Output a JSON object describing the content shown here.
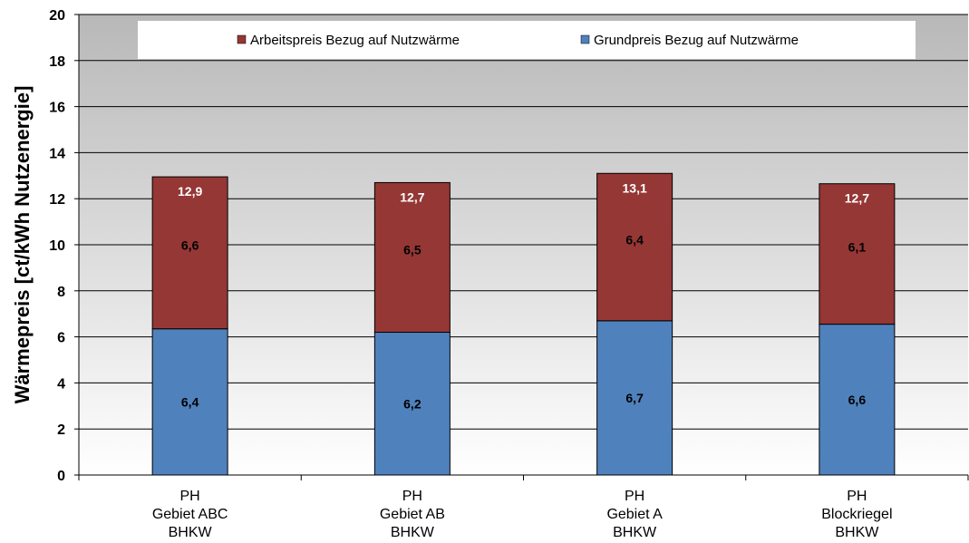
{
  "chart_data": {
    "type": "bar",
    "stacked": true,
    "ylabel": "Wärmepreis  [ct/kWh Nutzenergie]",
    "xlabel": "",
    "ylim": [
      0,
      20
    ],
    "yticks": [
      "0",
      "2",
      "4",
      "6",
      "8",
      "10",
      "12",
      "14",
      "16",
      "18",
      "20"
    ],
    "grid": true,
    "legend_position": "top",
    "categories": [
      [
        "PH",
        "Gebiet ABC",
        "BHKW"
      ],
      [
        "PH",
        "Gebiet AB",
        "BHKW"
      ],
      [
        "PH",
        "Gebiet A",
        "BHKW"
      ],
      [
        "PH",
        "Blockriegel",
        "BHKW"
      ]
    ],
    "series": [
      {
        "name": "Grundpreis Bezug auf Nutzwärme",
        "color": "#4f81bd",
        "values": [
          6.35,
          6.2,
          6.7,
          6.55
        ],
        "labels": [
          "6,4",
          "6,2",
          "6,7",
          "6,6"
        ]
      },
      {
        "name": "Arbeitspreis Bezug auf Nutzwärme",
        "color": "#953735",
        "values": [
          6.6,
          6.5,
          6.4,
          6.1
        ],
        "labels": [
          "6,6",
          "6,5",
          "6,4",
          "6,1"
        ]
      }
    ],
    "totals": [
      12.95,
      12.7,
      13.1,
      12.65
    ],
    "total_labels": [
      "12,9",
      "12,7",
      "13,1",
      "12,7"
    ],
    "legend_order": [
      1,
      0
    ]
  }
}
